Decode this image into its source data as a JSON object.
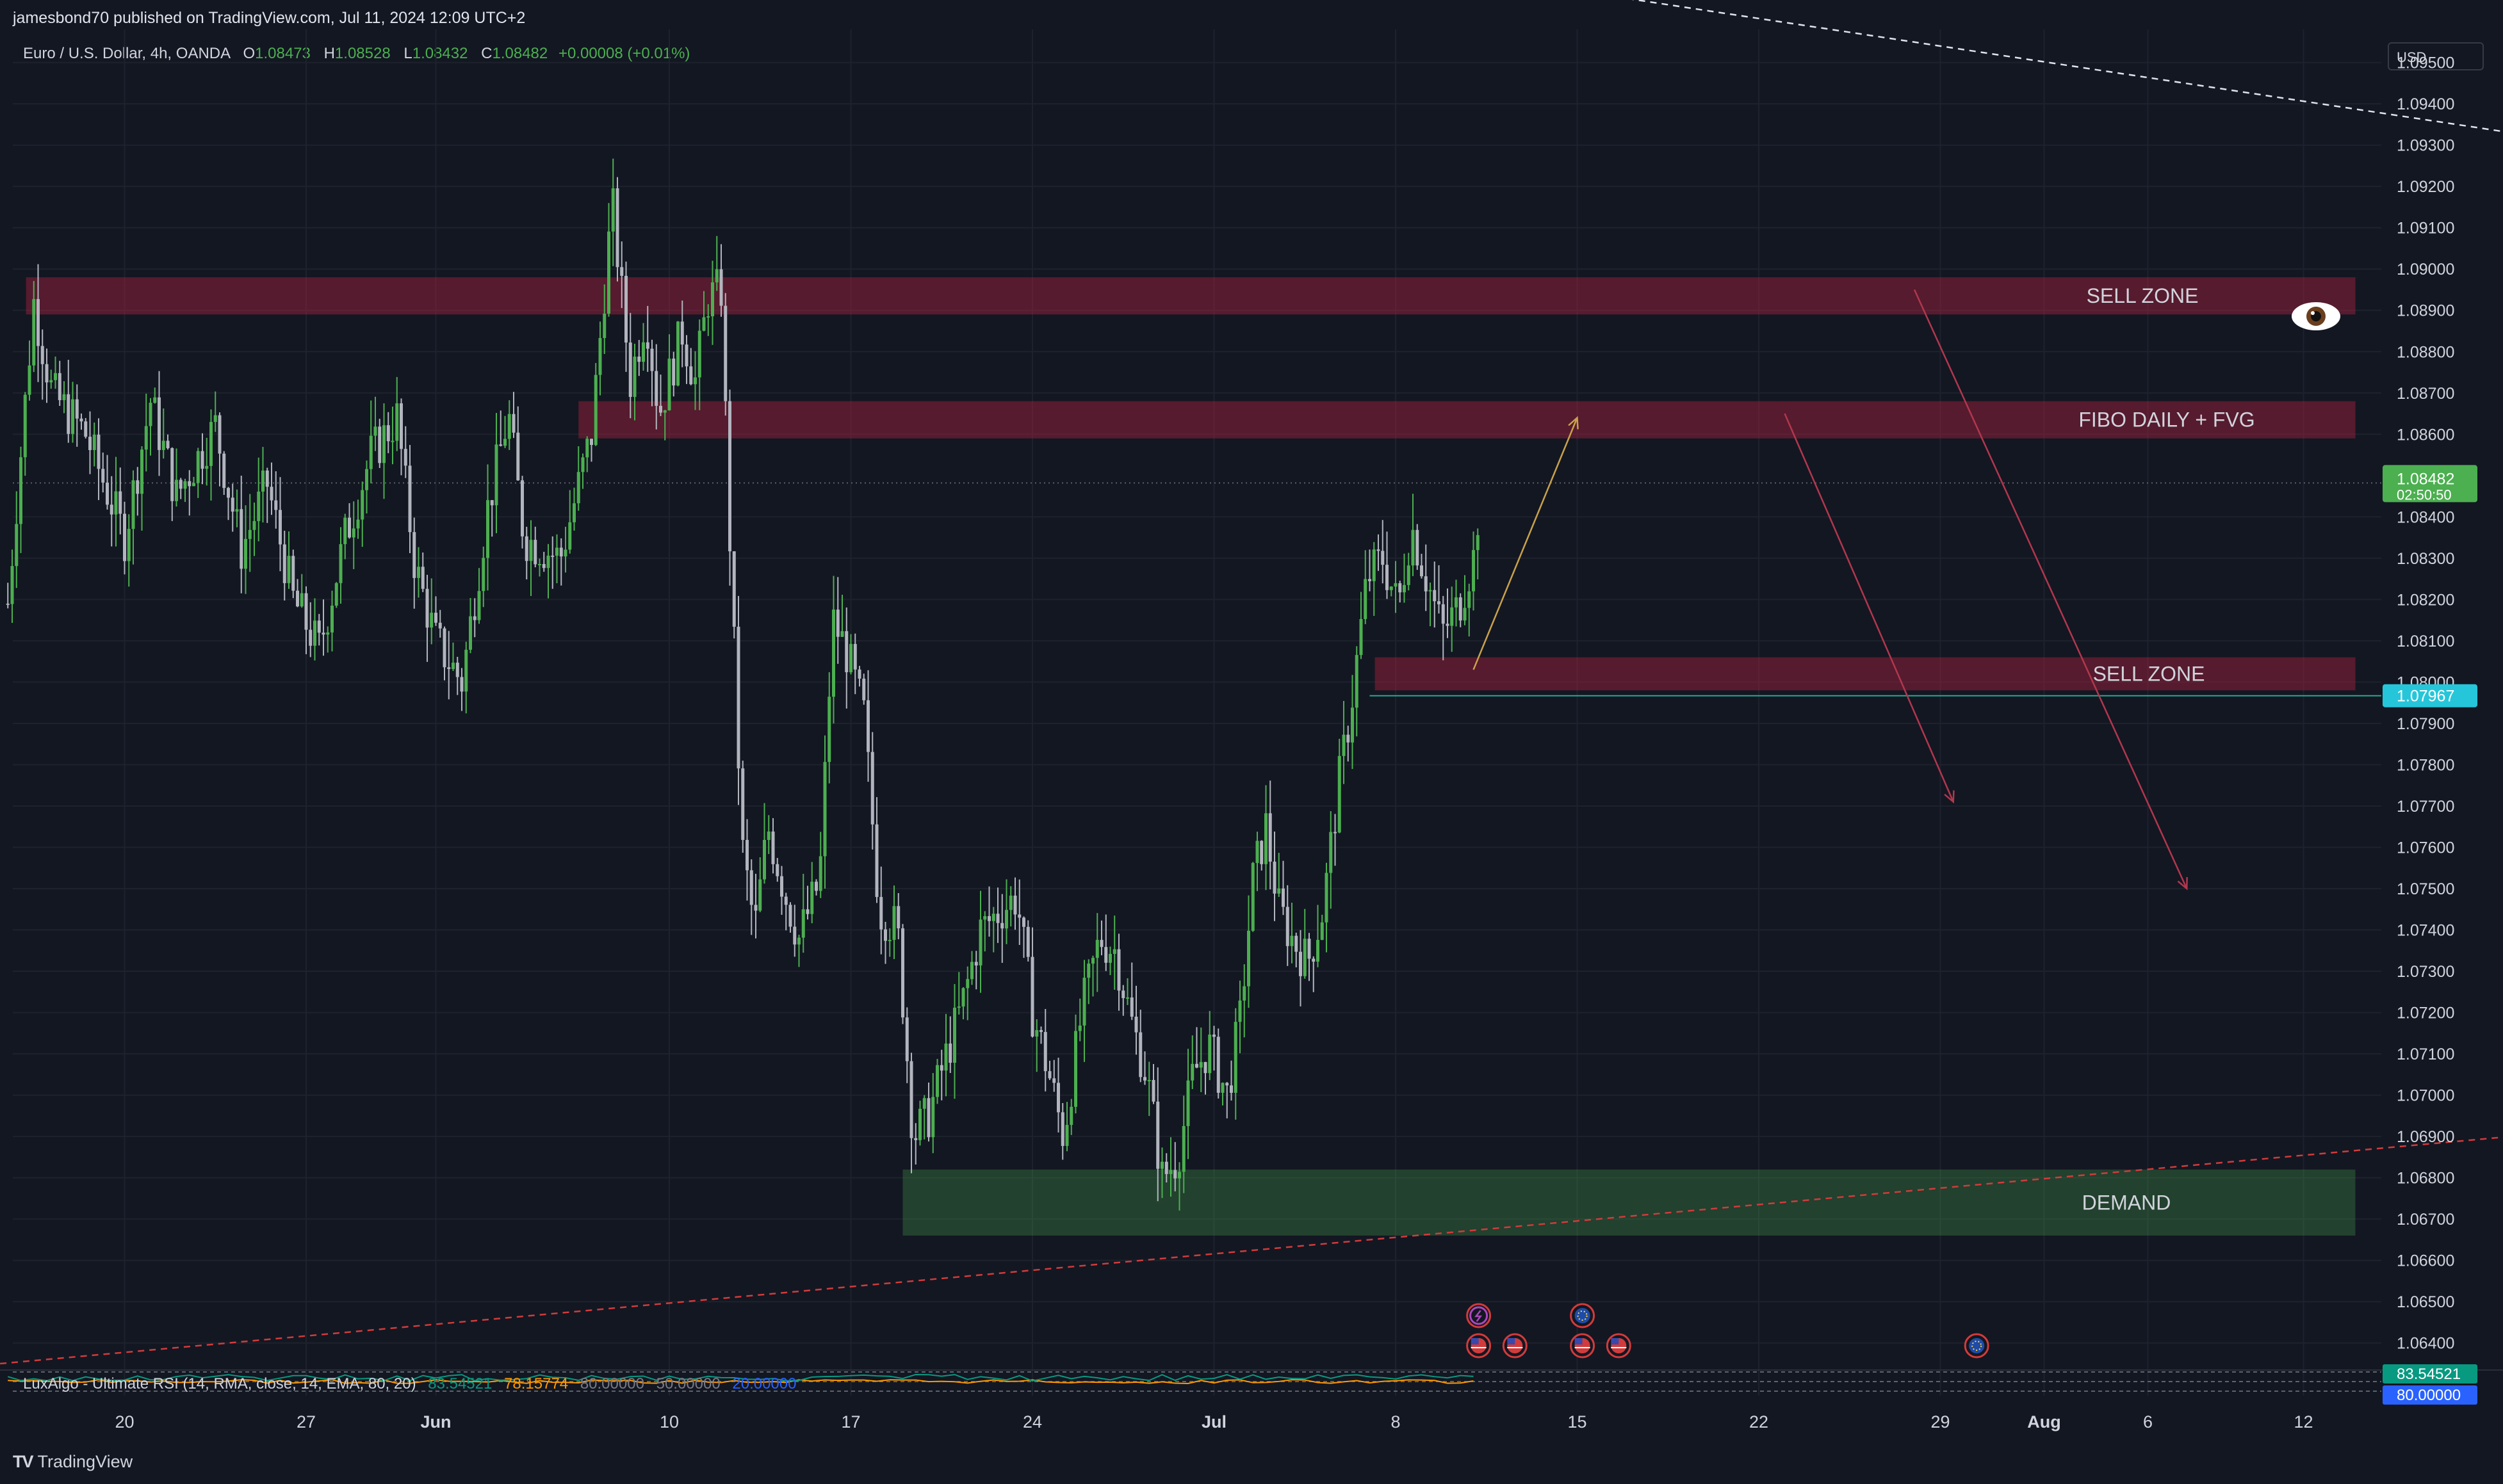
{
  "header": {
    "published": "jamesbond70 published on TradingView.com, Jul 11, 2024 12:09 UTC+2"
  },
  "legend": {
    "symbol": "Euro / U.S. Dollar, 4h, OANDA",
    "open_label": "O",
    "open": "1.08473",
    "high_label": "H",
    "high": "1.08528",
    "low_label": "L",
    "low": "1.08432",
    "close_label": "C",
    "close": "1.08482",
    "change": "+0.00008 (+0.01%)"
  },
  "currency": "USD",
  "footer": {
    "logo": "TV",
    "brand": "TradingView"
  },
  "chart_data": {
    "type": "candlestick",
    "timeframe": "4h",
    "ylim": [
      1.0635,
      1.0958
    ],
    "y_ticks": [
      "1.09500",
      "1.09400",
      "1.09300",
      "1.09200",
      "1.09100",
      "1.09000",
      "1.08900",
      "1.08800",
      "1.08700",
      "1.08600",
      "1.08400",
      "1.08300",
      "1.08200",
      "1.08100",
      "1.08000",
      "1.07900",
      "1.07800",
      "1.07700",
      "1.07600",
      "1.07500",
      "1.07400",
      "1.07300",
      "1.07200",
      "1.07100",
      "1.07000",
      "1.06900",
      "1.06800",
      "1.06700",
      "1.06600",
      "1.06500",
      "1.06400"
    ],
    "x_ticks": [
      {
        "label": "20",
        "day": -21
      },
      {
        "label": "27",
        "day": -14
      },
      {
        "label": "Jun",
        "day": -9
      },
      {
        "label": "10",
        "day": 0
      },
      {
        "label": "17",
        "day": 7
      },
      {
        "label": "24",
        "day": 14
      },
      {
        "label": "Jul",
        "day": 21
      },
      {
        "label": "8",
        "day": 28
      },
      {
        "label": "15",
        "day": 35
      },
      {
        "label": "22",
        "day": 42
      },
      {
        "label": "29",
        "day": 49
      },
      {
        "label": "Aug",
        "day": 53
      },
      {
        "label": "6",
        "day": 57
      },
      {
        "label": "12",
        "day": 63
      }
    ],
    "price_path": [
      [
        -25.5,
        1.0819
      ],
      [
        -24.5,
        1.0892
      ],
      [
        -23.8,
        1.087
      ],
      [
        -22.5,
        1.086
      ],
      [
        -21.0,
        1.0835
      ],
      [
        -20.0,
        1.0868
      ],
      [
        -19.0,
        1.0845
      ],
      [
        -17.5,
        1.0862
      ],
      [
        -16.5,
        1.0832
      ],
      [
        -15.5,
        1.0848
      ],
      [
        -14.5,
        1.082
      ],
      [
        -13.5,
        1.0808
      ],
      [
        -12.5,
        1.0835
      ],
      [
        -11.5,
        1.0855
      ],
      [
        -10.5,
        1.0864
      ],
      [
        -9.8,
        1.0828
      ],
      [
        -9.0,
        1.081
      ],
      [
        -8.0,
        1.08
      ],
      [
        -7.0,
        1.0842
      ],
      [
        -6.2,
        1.0865
      ],
      [
        -5.6,
        1.0835
      ],
      [
        -4.2,
        1.083
      ],
      [
        -3.0,
        1.086
      ],
      [
        -2.2,
        1.0916
      ],
      [
        -1.5,
        1.0873
      ],
      [
        -0.9,
        1.089
      ],
      [
        -0.4,
        1.0865
      ],
      [
        0.5,
        1.0885
      ],
      [
        1.0,
        1.0873
      ],
      [
        1.5,
        1.0893
      ],
      [
        2.0,
        1.0895
      ],
      [
        2.3,
        1.084
      ],
      [
        2.8,
        1.076
      ],
      [
        3.3,
        1.074
      ],
      [
        3.8,
        1.0765
      ],
      [
        4.5,
        1.0748
      ],
      [
        5.0,
        1.0738
      ],
      [
        5.8,
        1.0752
      ],
      [
        6.3,
        1.0815
      ],
      [
        6.8,
        1.0808
      ],
      [
        7.5,
        1.0792
      ],
      [
        8.1,
        1.0745
      ],
      [
        8.8,
        1.074
      ],
      [
        9.4,
        1.069
      ],
      [
        10.0,
        1.0695
      ],
      [
        10.6,
        1.0708
      ],
      [
        11.3,
        1.0722
      ],
      [
        12.0,
        1.074
      ],
      [
        12.8,
        1.0745
      ],
      [
        13.4,
        1.0748
      ],
      [
        14.0,
        1.072
      ],
      [
        14.6,
        1.0706
      ],
      [
        15.2,
        1.069
      ],
      [
        15.9,
        1.072
      ],
      [
        16.6,
        1.0738
      ],
      [
        17.2,
        1.0735
      ],
      [
        17.8,
        1.0718
      ],
      [
        18.4,
        1.0705
      ],
      [
        19.0,
        1.068
      ],
      [
        19.6,
        1.0685
      ],
      [
        20.2,
        1.0705
      ],
      [
        20.8,
        1.0712
      ],
      [
        21.5,
        1.07
      ],
      [
        22.0,
        1.0718
      ],
      [
        22.5,
        1.0752
      ],
      [
        23.0,
        1.0765
      ],
      [
        23.5,
        1.0745
      ],
      [
        24.0,
        1.0738
      ],
      [
        24.6,
        1.0732
      ],
      [
        25.2,
        1.0745
      ],
      [
        25.8,
        1.0775
      ],
      [
        26.3,
        1.0795
      ],
      [
        26.9,
        1.0825
      ],
      [
        27.5,
        1.083
      ],
      [
        28.1,
        1.0818
      ],
      [
        28.6,
        1.0838
      ],
      [
        29.2,
        1.0825
      ],
      [
        29.8,
        1.0812
      ],
      [
        30.4,
        1.0818
      ],
      [
        31.0,
        1.083
      ],
      [
        31.3,
        1.0848
      ]
    ],
    "current_price": 1.08482,
    "current_price_label": "1.08482",
    "countdown": "02:50:50",
    "level_line": 1.07967,
    "level_label": "1.07967",
    "zones": [
      {
        "label": "SELL ZONE",
        "top": 1.0898,
        "bottom": 1.0889,
        "start_day": -24.8,
        "end_day": 65,
        "type": "supply"
      },
      {
        "label": "FIBO DAILY + FVG",
        "top": 1.0868,
        "bottom": 1.0859,
        "start_day": -3.5,
        "end_day": 65,
        "type": "supply"
      },
      {
        "label": "SELL ZONE",
        "top": 1.0806,
        "bottom": 1.0798,
        "start_day": 27.2,
        "end_day": 65,
        "type": "supply"
      },
      {
        "label": "DEMAND",
        "top": 1.0682,
        "bottom": 1.0666,
        "start_day": 9.0,
        "end_day": 65,
        "type": "demand"
      }
    ],
    "arrows": [
      {
        "from": [
          31.0,
          1.0803
        ],
        "to": [
          35.0,
          1.0864
        ],
        "color": "#c9a24a"
      },
      {
        "from": [
          43.0,
          1.0865
        ],
        "to": [
          49.5,
          1.0771
        ],
        "color": "#b2374e"
      },
      {
        "from": [
          48.0,
          1.0895
        ],
        "to": [
          58.5,
          1.075
        ],
        "color": "#b2374e"
      }
    ],
    "trendlines": [
      {
        "from": [
          34.3,
          1.0968
        ],
        "to": [
          71.0,
          1.0933
        ],
        "color": "#e0e3eb",
        "style": "dashed"
      },
      {
        "from": [
          -25.8,
          1.0635
        ],
        "to": [
          71.0,
          1.069
        ],
        "color": "#d23b3b",
        "style": "dashed"
      }
    ],
    "annotations": [
      "SELL ZONE",
      "FIBO DAILY + FVG",
      "SELL ZONE",
      "DEMAND"
    ],
    "event_icons": [
      {
        "day": 31.2,
        "row": 1,
        "kind": "lightning"
      },
      {
        "day": 31.2,
        "row": 2,
        "kind": "us-flag"
      },
      {
        "day": 32.6,
        "row": 2,
        "kind": "us-flag"
      },
      {
        "day": 35.2,
        "row": 1,
        "kind": "eu-flag"
      },
      {
        "day": 35.2,
        "row": 2,
        "kind": "us-flag"
      },
      {
        "day": 36.6,
        "row": 2,
        "kind": "us-flag"
      },
      {
        "day": 50.4,
        "row": 2,
        "kind": "eu-flag"
      }
    ],
    "rsi": {
      "legend": "LuxAlgo - Ultimate RSI (14, RMA, close, 14, EMA, 80, 20)",
      "values_text": [
        "83.54521",
        "78.15774",
        "80.00000",
        "50.00000",
        "20.00000"
      ],
      "value": 83.54521,
      "value_label": "83.54521",
      "level_label": "80.00000",
      "colors": [
        "#089981",
        "#ff9800",
        "#787b86",
        "#787b86",
        "#2962ff"
      ]
    }
  }
}
